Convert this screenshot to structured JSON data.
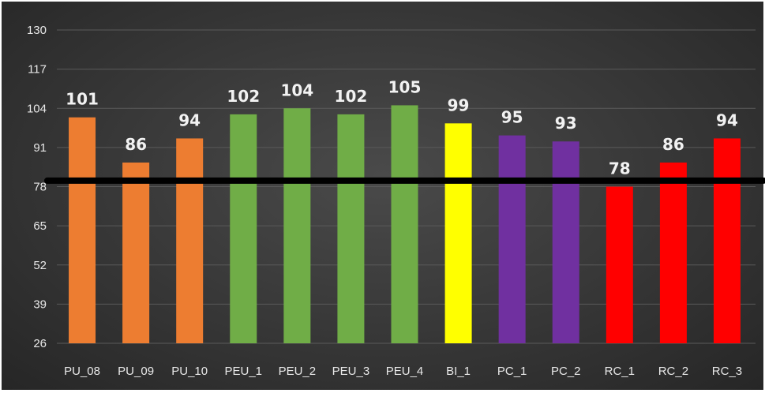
{
  "chart_data": {
    "type": "bar",
    "categories": [
      "PU_08",
      "PU_09",
      "PU_10",
      "PEU_1",
      "PEU_2",
      "PEU_3",
      "PEU_4",
      "BI_1",
      "PC_1",
      "PC_2",
      "RC_1",
      "RC_2",
      "RC_3"
    ],
    "values": [
      101,
      86,
      94,
      102,
      104,
      102,
      105,
      99,
      95,
      93,
      78,
      86,
      94
    ],
    "colors": [
      "#ED7D31",
      "#ED7D31",
      "#ED7D31",
      "#70AD47",
      "#70AD47",
      "#70AD47",
      "#70AD47",
      "#FFFF00",
      "#7030A0",
      "#7030A0",
      "#FF0000",
      "#FF0000",
      "#FF0000"
    ],
    "ylim": [
      26,
      130
    ],
    "yticks": [
      26,
      39,
      52,
      65,
      78,
      91,
      104,
      117,
      130
    ],
    "reference_line": 80,
    "grid": true,
    "legend": "none",
    "title": "",
    "xlabel": "",
    "ylabel": ""
  }
}
